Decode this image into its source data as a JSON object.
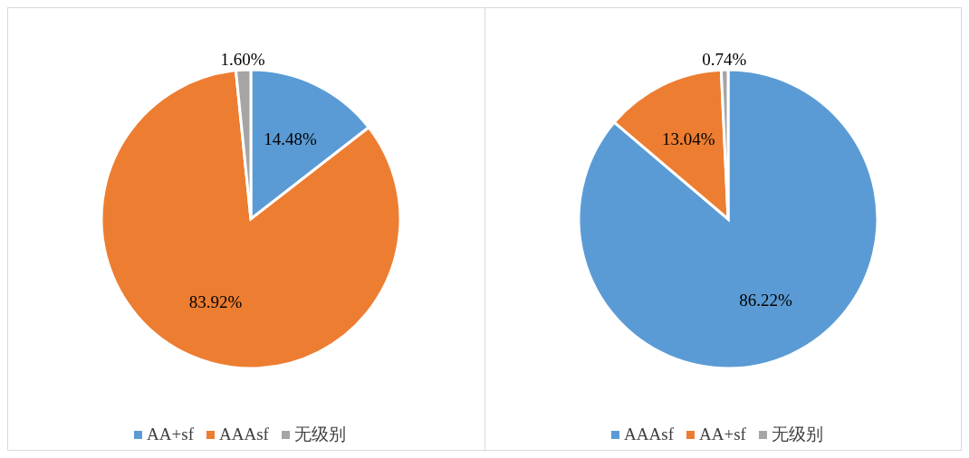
{
  "chart_data": [
    {
      "type": "pie",
      "categories": [
        "AA+sf",
        "AAAsf",
        "无级别"
      ],
      "values": [
        14.48,
        83.92,
        1.6
      ],
      "colors": [
        "#5b9bd5",
        "#ed7d31",
        "#a5a5a5"
      ],
      "value_labels": [
        "14.48%",
        "83.92%",
        "1.60%"
      ],
      "legend": "bottom"
    },
    {
      "type": "pie",
      "categories": [
        "AAAsf",
        "AA+sf",
        "无级别"
      ],
      "values": [
        86.22,
        13.04,
        0.74
      ],
      "colors": [
        "#5b9bd5",
        "#ed7d31",
        "#a5a5a5"
      ],
      "value_labels": [
        "86.22%",
        "13.04%",
        "0.74%"
      ],
      "legend": "bottom"
    }
  ]
}
